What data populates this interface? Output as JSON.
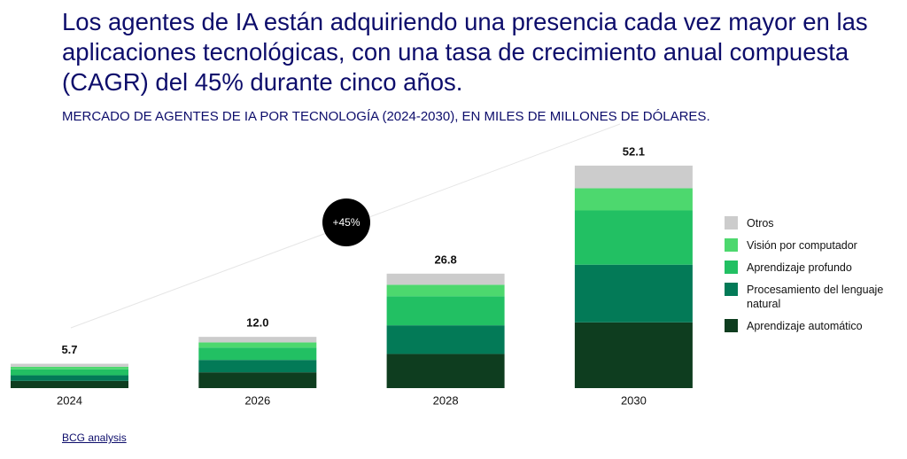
{
  "chart_data": {
    "type": "stacked_bar",
    "title": "Los agentes de IA están adquiriendo una presencia cada vez mayor en las aplicaciones tecnológicas, con una tasa de crecimiento anual compuesta (CAGR) del 45% durante cinco años.",
    "subtitle": "MERCADO DE AGENTES DE IA POR TECNOLOGÍA (2024-2030), EN MILES DE MILLONES DE DÓLARES.",
    "categories": [
      "2024",
      "2026",
      "2028",
      "2030"
    ],
    "series": [
      {
        "name": "Aprendizaje automático",
        "color": "#0e3d1f",
        "values": [
          1.7,
          3.7,
          8.0,
          15.4
        ]
      },
      {
        "name": "Procesamiento del lenguaje natural",
        "color": "#037a57",
        "values": [
          1.3,
          2.9,
          6.7,
          13.5
        ]
      },
      {
        "name": "Aprendizaje profundo",
        "color": "#22c063",
        "values": [
          1.4,
          2.9,
          6.8,
          12.7
        ]
      },
      {
        "name": "Visión por computador",
        "color": "#4dd86e",
        "values": [
          0.6,
          1.2,
          2.7,
          5.2
        ]
      },
      {
        "name": "Otros",
        "color": "#cccccc",
        "values": [
          0.7,
          1.3,
          2.6,
          5.3
        ]
      }
    ],
    "totals": {
      "values": [
        5.7,
        12.0,
        26.8,
        52.1
      ],
      "value_labels": [
        "5.7",
        "12.0",
        "26.8",
        "52.1"
      ]
    },
    "annotation": "+45%",
    "source": "BCG analysis"
  }
}
